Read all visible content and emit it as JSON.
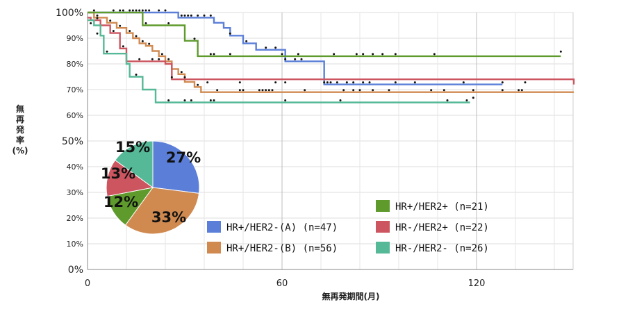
{
  "chart_data": [
    {
      "type": "line",
      "subtype": "kaplan-meier-step",
      "xlabel": "無再発期間(月)",
      "ylabel": "無再発率(%)",
      "xlim": [
        0,
        150
      ],
      "ylim": [
        0,
        100
      ],
      "x_ticks": [
        0,
        60,
        120
      ],
      "y_ticks": [
        0,
        10,
        20,
        30,
        40,
        50,
        60,
        70,
        80,
        90,
        100
      ],
      "y_tick_labels": [
        "0%",
        "10%",
        "20%",
        "30%",
        "40%",
        "50%",
        "60%",
        "70%",
        "80%",
        "90%",
        "100%"
      ],
      "grid": true,
      "legend_position": "bottom-right",
      "colors": {
        "HR+/HER2-(A)": "#5b7fd8",
        "HR+/HER2-(B)": "#d08a50",
        "HR+/HER2+": "#5e9a2c",
        "HR-/HER2+": "#cc5560",
        "HR-/HER2-": "#55b896"
      },
      "series": [
        {
          "name": "HR+/HER2-(A)",
          "legend": "HR+/HER2-(A) (n=47)",
          "steps": [
            [
              0,
              100
            ],
            [
              28,
              98
            ],
            [
              39,
              96
            ],
            [
              42,
              94
            ],
            [
              44,
              91
            ],
            [
              48,
              88
            ],
            [
              52,
              85.5
            ],
            [
              61,
              81
            ],
            [
              73,
              72
            ],
            [
              128,
              72
            ]
          ],
          "censored": [
            [
              2,
              100
            ],
            [
              8,
              100
            ],
            [
              10,
              100
            ],
            [
              11,
              100
            ],
            [
              13,
              100
            ],
            [
              14,
              100
            ],
            [
              15,
              100
            ],
            [
              16,
              100
            ],
            [
              17,
              100
            ],
            [
              18,
              100
            ],
            [
              19,
              100
            ],
            [
              22,
              100
            ],
            [
              24,
              100
            ],
            [
              29,
              98
            ],
            [
              30,
              98
            ],
            [
              31,
              98
            ],
            [
              32,
              98
            ],
            [
              34,
              98
            ],
            [
              36,
              98
            ],
            [
              38,
              98
            ],
            [
              44,
              91
            ],
            [
              49,
              88
            ],
            [
              55,
              85.5
            ],
            [
              58,
              85.5
            ],
            [
              61,
              81
            ],
            [
              64,
              81
            ],
            [
              66,
              81
            ],
            [
              74,
              72
            ],
            [
              75,
              72
            ],
            [
              82,
              72
            ]
          ]
        },
        {
          "name": "HR+/HER2-(B)",
          "legend": "HR+/HER2-(B) (n=56)",
          "steps": [
            [
              0,
              100
            ],
            [
              2,
              98
            ],
            [
              6,
              96
            ],
            [
              9,
              94
            ],
            [
              12,
              92
            ],
            [
              14,
              90
            ],
            [
              16,
              88
            ],
            [
              18,
              87
            ],
            [
              20,
              85
            ],
            [
              22,
              83
            ],
            [
              24,
              81
            ],
            [
              26,
              78
            ],
            [
              28,
              76
            ],
            [
              30,
              73
            ],
            [
              33,
              71
            ],
            [
              35,
              69
            ],
            [
              150,
              69
            ]
          ],
          "censored": [
            [
              3,
              98
            ],
            [
              7,
              96
            ],
            [
              10,
              94
            ],
            [
              13,
              92
            ],
            [
              15,
              90
            ],
            [
              17,
              88
            ],
            [
              19,
              87
            ],
            [
              23,
              83
            ],
            [
              25,
              81
            ],
            [
              29,
              76
            ],
            [
              34,
              71
            ],
            [
              40,
              69
            ],
            [
              47,
              69
            ],
            [
              48,
              69
            ],
            [
              53,
              69
            ],
            [
              54,
              69
            ],
            [
              55,
              69
            ],
            [
              56,
              69
            ],
            [
              57,
              69
            ],
            [
              67,
              69
            ],
            [
              79,
              69
            ],
            [
              82,
              69
            ],
            [
              84,
              69
            ],
            [
              88,
              69
            ],
            [
              93,
              69
            ],
            [
              106,
              69
            ],
            [
              110,
              69
            ],
            [
              119,
              69
            ],
            [
              128,
              69
            ],
            [
              133,
              69
            ],
            [
              134,
              69
            ]
          ]
        },
        {
          "name": "HR+/HER2+",
          "legend": "HR+/HER2+ (n=21)",
          "steps": [
            [
              0,
              100
            ],
            [
              17,
              95
            ],
            [
              30,
              89
            ],
            [
              34,
              83
            ],
            [
              146,
              83
            ]
          ],
          "censored": [
            [
              18,
              95
            ],
            [
              25,
              95
            ],
            [
              33,
              89
            ],
            [
              38,
              83
            ],
            [
              39,
              83
            ],
            [
              44,
              83
            ],
            [
              60,
              83
            ],
            [
              65,
              83
            ],
            [
              76,
              83
            ],
            [
              83,
              83
            ],
            [
              85,
              83
            ],
            [
              88,
              83
            ],
            [
              91,
              83
            ],
            [
              95,
              83
            ],
            [
              107,
              83
            ],
            [
              146,
              84
            ]
          ]
        },
        {
          "name": "HR-/HER2+",
          "legend": "HR-/HER2+ (n=22)",
          "steps": [
            [
              0,
              98
            ],
            [
              1,
              97
            ],
            [
              4,
              95
            ],
            [
              7,
              92
            ],
            [
              10,
              86
            ],
            [
              12,
              81
            ],
            [
              24,
              80
            ],
            [
              26,
              74
            ],
            [
              150,
              72
            ]
          ],
          "censored": [
            [
              3,
              97
            ],
            [
              8,
              92
            ],
            [
              11,
              86
            ],
            [
              16,
              81
            ],
            [
              20,
              81
            ],
            [
              22,
              81
            ],
            [
              26,
              74
            ],
            [
              30,
              74
            ],
            [
              37,
              72
            ],
            [
              47,
              72
            ],
            [
              58,
              72
            ],
            [
              61,
              72
            ],
            [
              73,
              72
            ],
            [
              77,
              72
            ],
            [
              80,
              72
            ],
            [
              85,
              72
            ],
            [
              87,
              72
            ],
            [
              95,
              72
            ],
            [
              101,
              72
            ],
            [
              116,
              72
            ],
            [
              128,
              72
            ],
            [
              135,
              72
            ]
          ]
        },
        {
          "name": "HR-/HER2-",
          "legend": "HR-/HER2- (n=26)",
          "steps": [
            [
              0,
              97
            ],
            [
              2,
              95
            ],
            [
              4,
              91
            ],
            [
              5,
              84
            ],
            [
              12,
              80
            ],
            [
              13,
              75
            ],
            [
              17,
              70
            ],
            [
              21,
              65
            ],
            [
              118,
              65
            ]
          ],
          "censored": [
            [
              1,
              95
            ],
            [
              3,
              91
            ],
            [
              6,
              84
            ],
            [
              15,
              75
            ],
            [
              25,
              65
            ],
            [
              30,
              65
            ],
            [
              32,
              65
            ],
            [
              38,
              65
            ],
            [
              39,
              65
            ],
            [
              61,
              65
            ],
            [
              78,
              65
            ],
            [
              111,
              65
            ],
            [
              117,
              65
            ],
            [
              119,
              66
            ]
          ]
        }
      ]
    },
    {
      "type": "pie",
      "slices": [
        {
          "label": "27%",
          "value": 27,
          "series": "HR+/HER2-(A)",
          "color": "#5b7fd8"
        },
        {
          "label": "33%",
          "value": 33,
          "series": "HR+/HER2-(B)",
          "color": "#d08a50"
        },
        {
          "label": "12%",
          "value": 12,
          "series": "HR+/HER2+",
          "color": "#5e9a2c"
        },
        {
          "label": "13%",
          "value": 13,
          "series": "HR-/HER2+",
          "color": "#cc5560"
        },
        {
          "label": "15%",
          "value": 15,
          "series": "HR-/HER2-",
          "color": "#55b896"
        }
      ]
    }
  ],
  "axis_text": {
    "ylabel_lines": [
      "無",
      "再",
      "発",
      "率",
      "(%)"
    ],
    "xlabel": "無再発期間(月)"
  }
}
